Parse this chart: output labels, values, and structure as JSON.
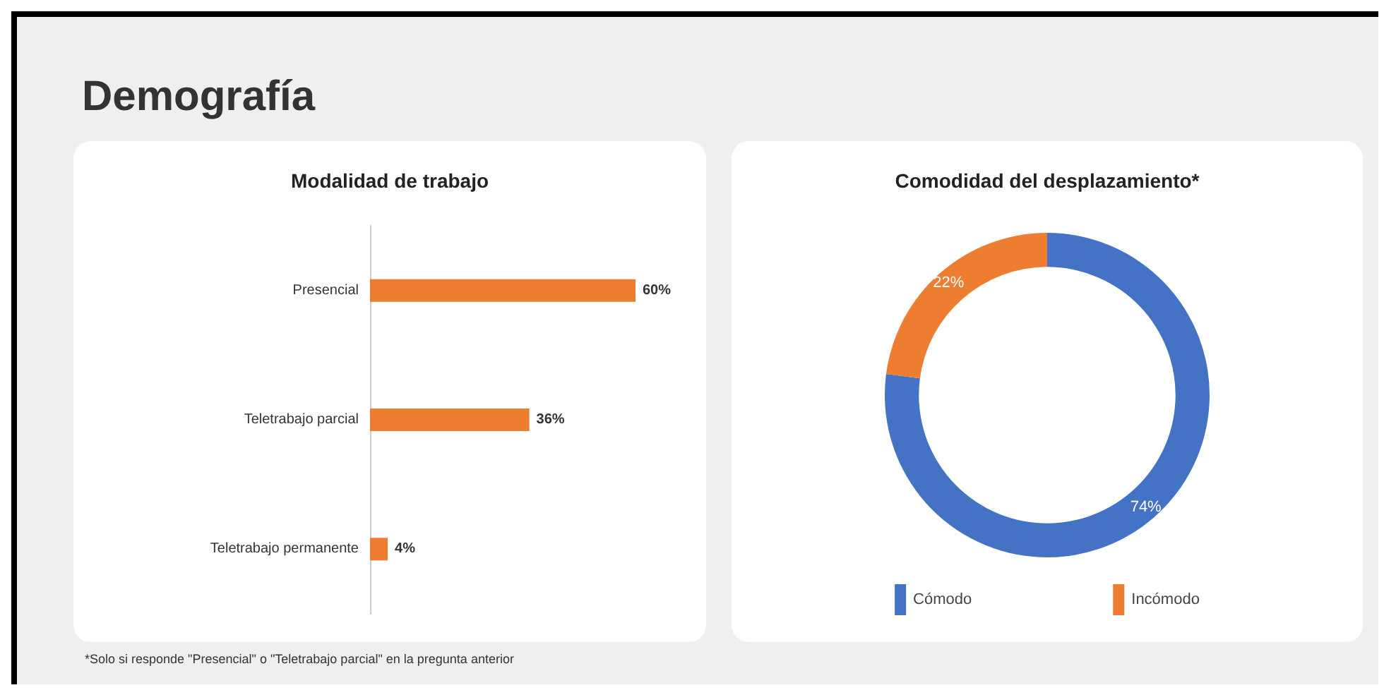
{
  "chart_data": [
    {
      "type": "bar",
      "title": "Modalidad de trabajo",
      "orientation": "horizontal",
      "categories": [
        "Presencial",
        "Teletrabajo parcial",
        "Teletrabajo permanente"
      ],
      "values": [
        60,
        36,
        4
      ],
      "color": "#ed7d31",
      "value_labels": [
        "60%",
        "36%",
        "4%"
      ],
      "annotations": [
        "Demografía"
      ]
    },
    {
      "type": "donut",
      "title": "Comodidad del desplazamiento*",
      "categories": [
        "Cómodo",
        "Incómodo"
      ],
      "values": [
        74,
        22
      ],
      "colors": [
        "#4472c4",
        "#ed7d31"
      ],
      "value_labels": [
        "74%",
        "22%"
      ],
      "legend": "bottom",
      "annotations": [
        "*Solo si responde \"Presencial\" o \"Teletrabajo parcial\" en la pregunta anterior"
      ]
    }
  ]
}
